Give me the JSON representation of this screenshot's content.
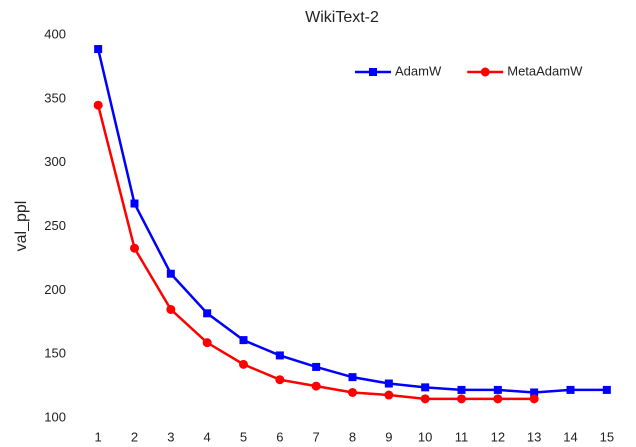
{
  "chart_data": {
    "type": "line",
    "title": "WikiText-2",
    "y_label": "val_ppl",
    "categories": [
      "1",
      "2",
      "3",
      "4",
      "5",
      "6",
      "7",
      "8",
      "9",
      "10",
      "11",
      "12",
      "13",
      "14",
      "15"
    ],
    "series": [
      {
        "name": "AdamW",
        "color": "#0000ff",
        "marker": "square",
        "values": [
          389,
          268,
          213,
          182,
          161,
          149,
          140,
          132,
          127,
          124,
          122,
          122,
          120,
          122,
          122
        ]
      },
      {
        "name": "MetaAdamW",
        "color": "#ff0000",
        "marker": "circle",
        "values": [
          345,
          233,
          185,
          159,
          142,
          130,
          125,
          120,
          118,
          115,
          115,
          115,
          115,
          null,
          null
        ]
      }
    ],
    "ylim": [
      100,
      400
    ],
    "yticks": [
      100,
      150,
      200,
      250,
      300,
      350,
      400
    ],
    "grid": false,
    "legend": "upper right"
  }
}
